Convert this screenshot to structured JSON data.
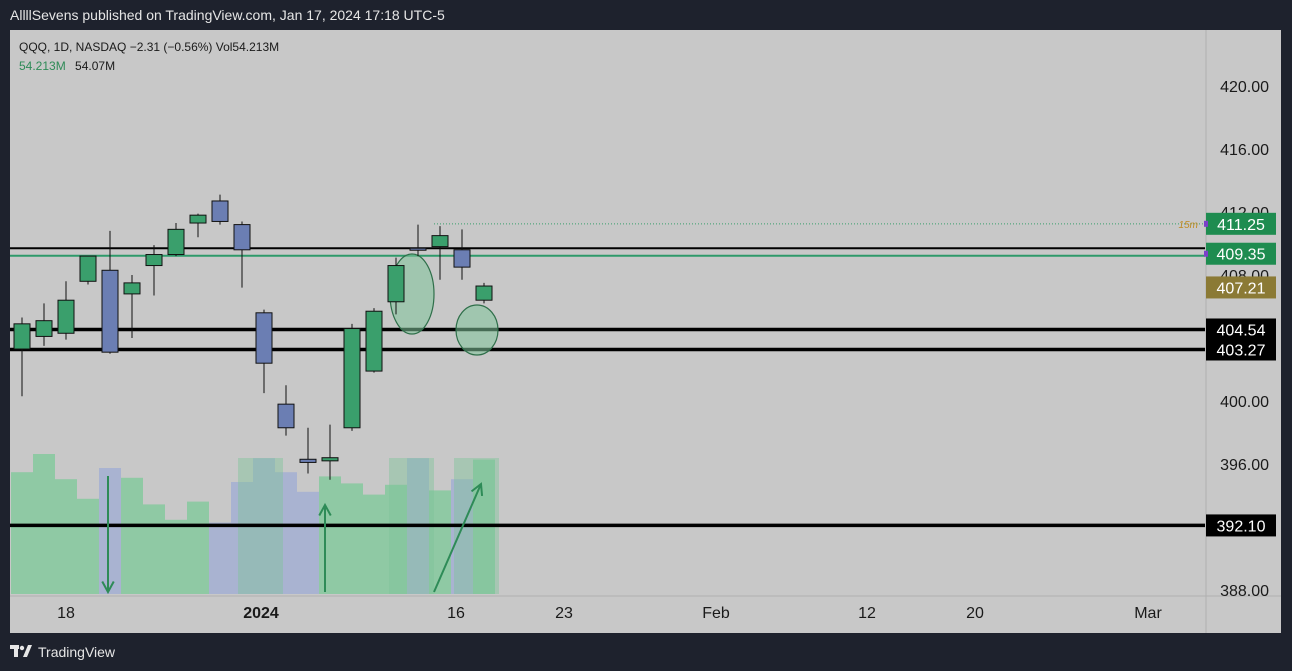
{
  "header": {
    "published_text": "AllllSevens published on TradingView.com, Jan 17, 2024 17:18 UTC-5"
  },
  "legend": {
    "symbol_line": "QQQ, 1D, NASDAQ  −2.31 (−0.56%)  Vol54.213M",
    "volume_value": "54.213M",
    "volume_ma": "54.07M"
  },
  "footer": {
    "brand": "TradingView"
  },
  "colors": {
    "background": "#c8c8c8",
    "bull_candle": "#3a9f6c",
    "bear_candle": "#6b7eb3",
    "bull_volume": "#8fc9a4",
    "bear_volume": "#a9b3d1",
    "level_line": "#000000",
    "current_line": "#2e9a6a",
    "ellipse_fill": "#7fc49a",
    "arrow": "#2e8b57"
  },
  "chart_data": {
    "type": "candlestick",
    "symbol": "QQQ",
    "interval": "1D",
    "exchange": "NASDAQ",
    "change": "−2.31 (−0.56%)",
    "x_labels": [
      "18",
      "2024",
      "16",
      "23",
      "Feb",
      "12",
      "20",
      "Mar"
    ],
    "y_labels": [
      "420.00",
      "416.00",
      "412.00",
      "408.00",
      "400.00",
      "396.00",
      "388.00"
    ],
    "y_tick_values": [
      420,
      416,
      412,
      408,
      400,
      396,
      388
    ],
    "ylim": [
      387.5,
      423.5
    ],
    "candles": [
      {
        "o": 403.3,
        "h": 405.3,
        "l": 400.3,
        "c": 404.9
      },
      {
        "o": 404.1,
        "h": 406.2,
        "l": 403.5,
        "c": 405.1
      },
      {
        "o": 404.3,
        "h": 407.6,
        "l": 403.9,
        "c": 406.4
      },
      {
        "o": 407.6,
        "h": 409.1,
        "l": 407.4,
        "c": 409.2
      },
      {
        "o": 408.3,
        "h": 410.8,
        "l": 403.0,
        "c": 403.1
      },
      {
        "o": 406.8,
        "h": 408.0,
        "l": 404.0,
        "c": 407.5
      },
      {
        "o": 408.6,
        "h": 409.9,
        "l": 406.7,
        "c": 409.3
      },
      {
        "o": 409.3,
        "h": 411.3,
        "l": 409.2,
        "c": 410.9
      },
      {
        "o": 411.3,
        "h": 411.9,
        "l": 410.4,
        "c": 411.8
      },
      {
        "o": 412.7,
        "h": 413.1,
        "l": 411.2,
        "c": 411.4
      },
      {
        "o": 411.2,
        "h": 411.4,
        "l": 407.2,
        "c": 409.6
      },
      {
        "o": 405.6,
        "h": 405.8,
        "l": 400.5,
        "c": 402.4
      },
      {
        "o": 399.8,
        "h": 401.0,
        "l": 397.8,
        "c": 398.3
      },
      {
        "o": 396.3,
        "h": 398.3,
        "l": 395.4,
        "c": 396.1
      },
      {
        "o": 396.2,
        "h": 398.5,
        "l": 395.0,
        "c": 396.4
      },
      {
        "o": 398.3,
        "h": 404.9,
        "l": 398.1,
        "c": 404.6
      },
      {
        "o": 401.9,
        "h": 405.9,
        "l": 401.8,
        "c": 405.7
      },
      {
        "o": 406.3,
        "h": 409.1,
        "l": 405.5,
        "c": 408.6
      },
      {
        "o": 409.7,
        "h": 411.2,
        "l": 409.2,
        "c": 409.6
      },
      {
        "o": 409.8,
        "h": 411.1,
        "l": 407.7,
        "c": 410.5
      },
      {
        "o": 409.6,
        "h": 410.9,
        "l": 407.7,
        "c": 408.5
      },
      {
        "o": 406.4,
        "h": 407.5,
        "l": 406.2,
        "c": 407.3
      }
    ],
    "volumes": [
      87,
      100,
      82,
      68,
      90,
      83,
      64,
      53,
      66,
      51,
      80,
      97,
      87,
      73,
      84,
      79,
      71,
      78,
      97,
      74,
      82,
      96
    ],
    "levels": [
      {
        "price": 404.54,
        "label": "404.54"
      },
      {
        "price": 403.27,
        "label": "403.27"
      },
      {
        "price": 392.1,
        "label": "392.10"
      },
      {
        "price": 409.7,
        "label": ""
      }
    ],
    "price_tags": [
      {
        "price": 411.25,
        "label": "411.25",
        "color": "#1e8c50"
      },
      {
        "price": 409.35,
        "label": "409.35",
        "color": "#1e8c50"
      },
      {
        "price": 407.21,
        "label": "407.21",
        "color": "#8b7a35"
      }
    ],
    "dotted_line_label": "15m"
  }
}
